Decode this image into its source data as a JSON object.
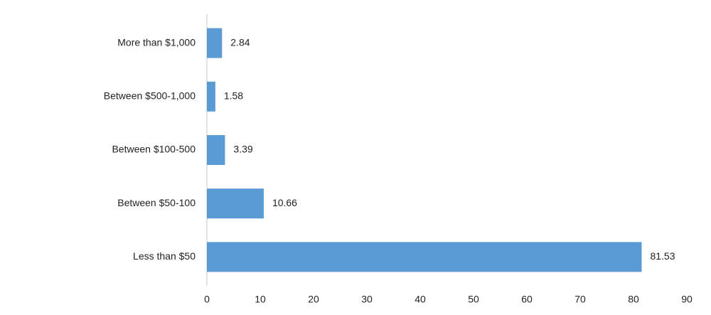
{
  "chart_data": {
    "type": "bar",
    "categories": [
      "More than $1,000",
      "Between $500-1,000",
      "Between $100-500",
      "Between $50-100",
      "Less than $50"
    ],
    "values": [
      2.84,
      1.58,
      3.39,
      10.66,
      81.53
    ],
    "color": "#5b9bd5",
    "xlim": [
      0,
      90
    ],
    "xticks": [
      0,
      10,
      20,
      30,
      40,
      50,
      60,
      70,
      80,
      90
    ]
  }
}
